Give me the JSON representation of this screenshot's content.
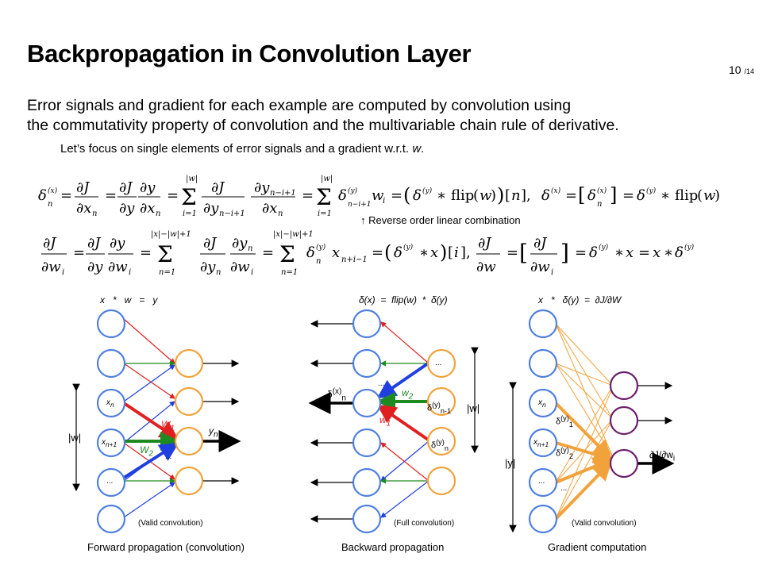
{
  "slide": {
    "title": "Backpropagation in Convolution Layer",
    "page": "10",
    "page_total": "/14",
    "subtitle_line1": "Error signals and gradient for each example are computed by convolution using",
    "subtitle_line2": "the commutativity property of convolution and the multivariable chain rule of derivative.",
    "focus": "Let’s focus on single elements of error signals and a gradient w.r.t. w.",
    "eq1": "δ⁽ˣ⁾ₙ = ∂J/∂xₙ = ∂J/∂y · ∂y/∂xₙ = Σᵢ₌₁^|w| ∂J/∂yₙ₋ᵢ₊₁ · ∂yₙ₋ᵢ₊₁/∂xₙ = Σᵢ₌₁^|w| δ⁽ʸ⁾ₙ₋ᵢ₊₁ wᵢ = (δ⁽ʸ⁾ * flip(w))[n],  δ⁽ˣ⁾ = [δ⁽ˣ⁾ₙ] = δ⁽ʸ⁾ * flip(w)",
    "eq2": "∂J/∂wᵢ = ∂J/∂y · ∂y/∂wᵢ = Σₙ₌₁^|x|−|w|+1 ∂J/∂yₙ · ∂yₙ/∂wᵢ = Σₙ₌₁^|x|−|w|+1 δ⁽ʸ⁾ₙ xₙ₊ᵢ₋₁ = (δ⁽ʸ⁾ * x)[i],  ∂J/∂w = [∂J/∂wᵢ] = δ⁽ʸ⁾ * x = x * δ⁽ʸ⁾",
    "note": "↑ Reverse order linear combination"
  },
  "panels": {
    "forward": {
      "header": "x   *   w   =   y",
      "caption": "Forward propagation (convolution)",
      "valid": "(Valid convolution)",
      "labels": {
        "xn": "xn",
        "xn1": "xn+1",
        "w1": "W1",
        "w2": "W2",
        "yn": "yn",
        "w_len": "|w|",
        "dots1": "...",
        "dots2": "..."
      }
    },
    "backward": {
      "header": "δ(x)  =  flip(w)  *  δ(y)",
      "caption": "Backward propagation",
      "valid": "(Full convolution)",
      "labels": {
        "dx": "δ(x)n",
        "dyn1": "δ(y)n-1",
        "dyn": "δ(y)n",
        "w1": "w1",
        "w2": "w2",
        "w_len": "|w|",
        "dots1": "...",
        "dots2": "..."
      }
    },
    "gradient": {
      "header": "x   *   δ(y)  =  ∂J/∂W",
      "caption": "Gradient computation",
      "valid": "(Valid convolution)",
      "labels": {
        "xn": "xn",
        "xn1": "xn+1",
        "dy1": "δ(y)1",
        "dy2": "δ(y)2",
        "y_len": "|y|",
        "dJdw": "∂J/∂wi",
        "dots1": "...",
        "dots2": "..."
      }
    }
  },
  "colors": {
    "input_node": "#4f7fe0",
    "output_node": "#f2a23b",
    "grad_node": "#6b1f6b",
    "red": "#e02020",
    "green": "#1f8a1f",
    "blue": "#1f3fe0"
  }
}
